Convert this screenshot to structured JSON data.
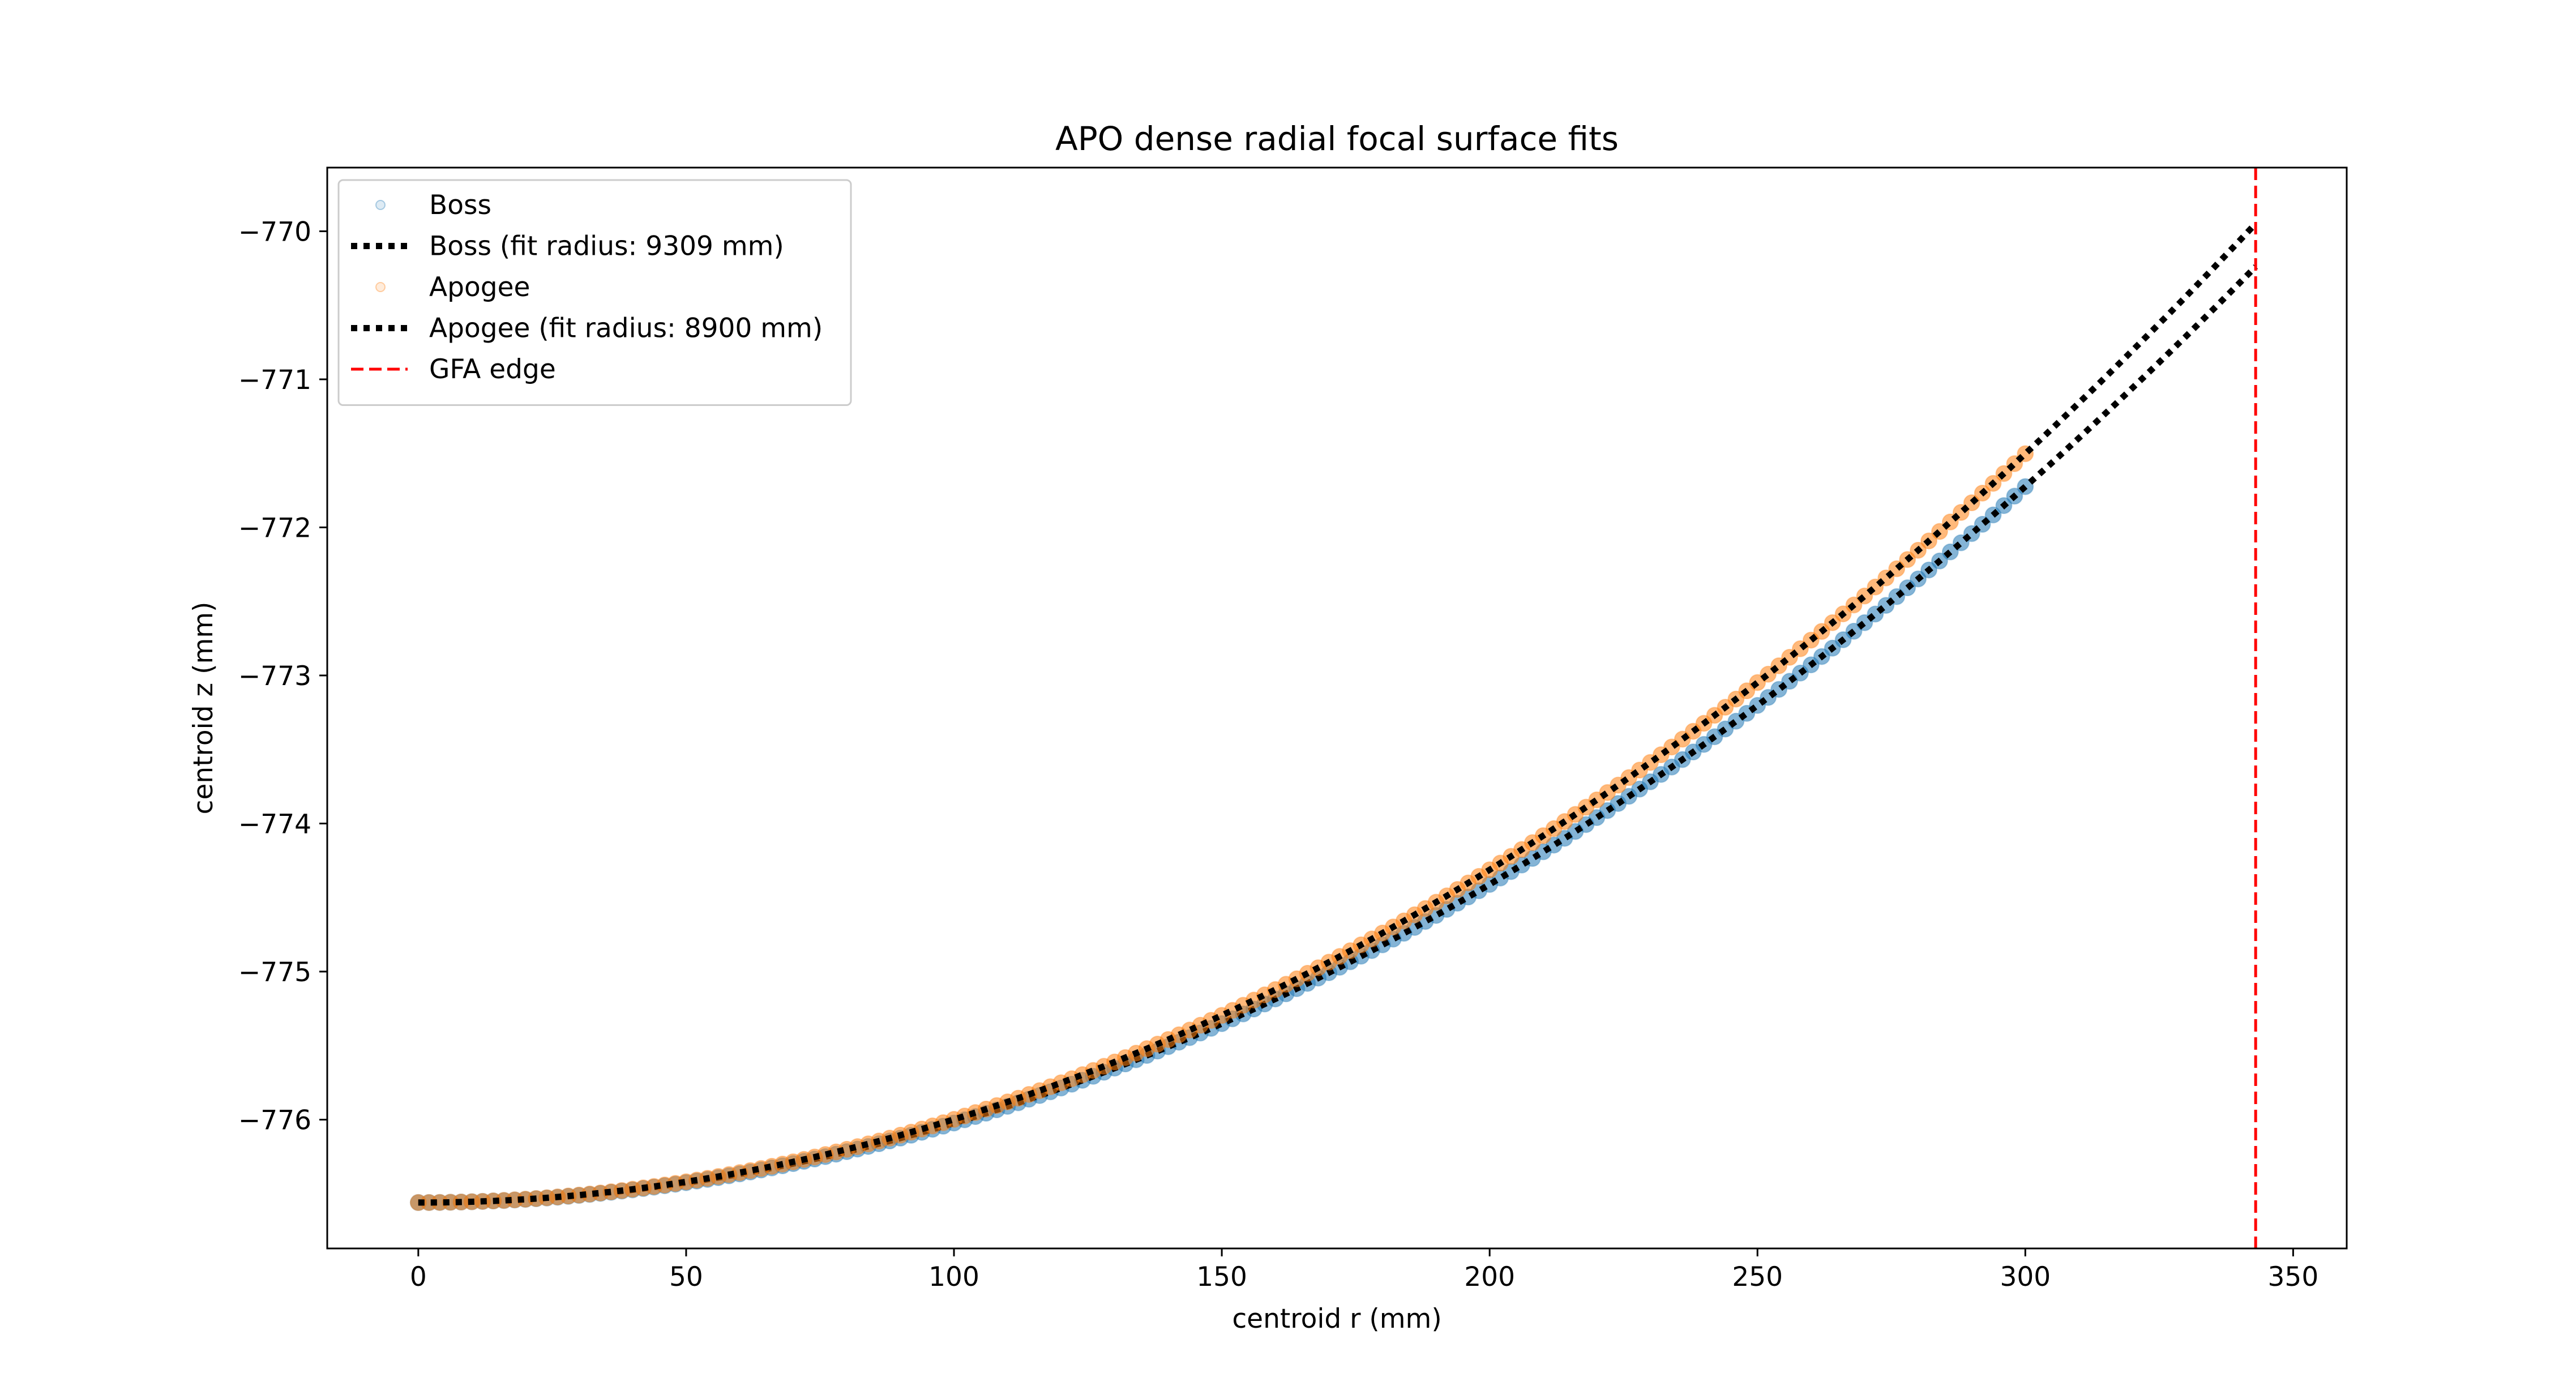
{
  "chart_data": {
    "type": "scatter",
    "title": "APO dense radial focal surface fits",
    "xlabel": "centroid r (mm)",
    "ylabel": "centroid z (mm)",
    "xlim": [
      -17,
      360
    ],
    "ylim": [
      -776.87,
      -769.57
    ],
    "xticks": [
      0,
      50,
      100,
      150,
      200,
      250,
      300,
      350
    ],
    "yticks": [
      -776,
      -775,
      -774,
      -773,
      -772,
      -771,
      -770
    ],
    "grid": false,
    "legend_position": "upper-left",
    "gfa_edge_x": 343,
    "vertex_z": -776.56,
    "series": [
      {
        "name": "Boss",
        "kind": "points",
        "color": "#1f77b4",
        "fit_radius_mm": 9309,
        "x_max": 300,
        "step": 2
      },
      {
        "name": "Boss (fit radius: 9309 mm)",
        "kind": "fit",
        "color": "#000000",
        "radius_mm": 9309,
        "x_max": 343
      },
      {
        "name": "Apogee",
        "kind": "points",
        "color": "#ff7f0e",
        "fit_radius_mm": 8900,
        "x_max": 300,
        "step": 2
      },
      {
        "name": "Apogee (fit radius: 8900 mm)",
        "kind": "fit",
        "color": "#000000",
        "radius_mm": 8900,
        "x_max": 343
      },
      {
        "name": "GFA edge",
        "kind": "vline",
        "color": "#ff0000",
        "x": 343
      }
    ]
  }
}
